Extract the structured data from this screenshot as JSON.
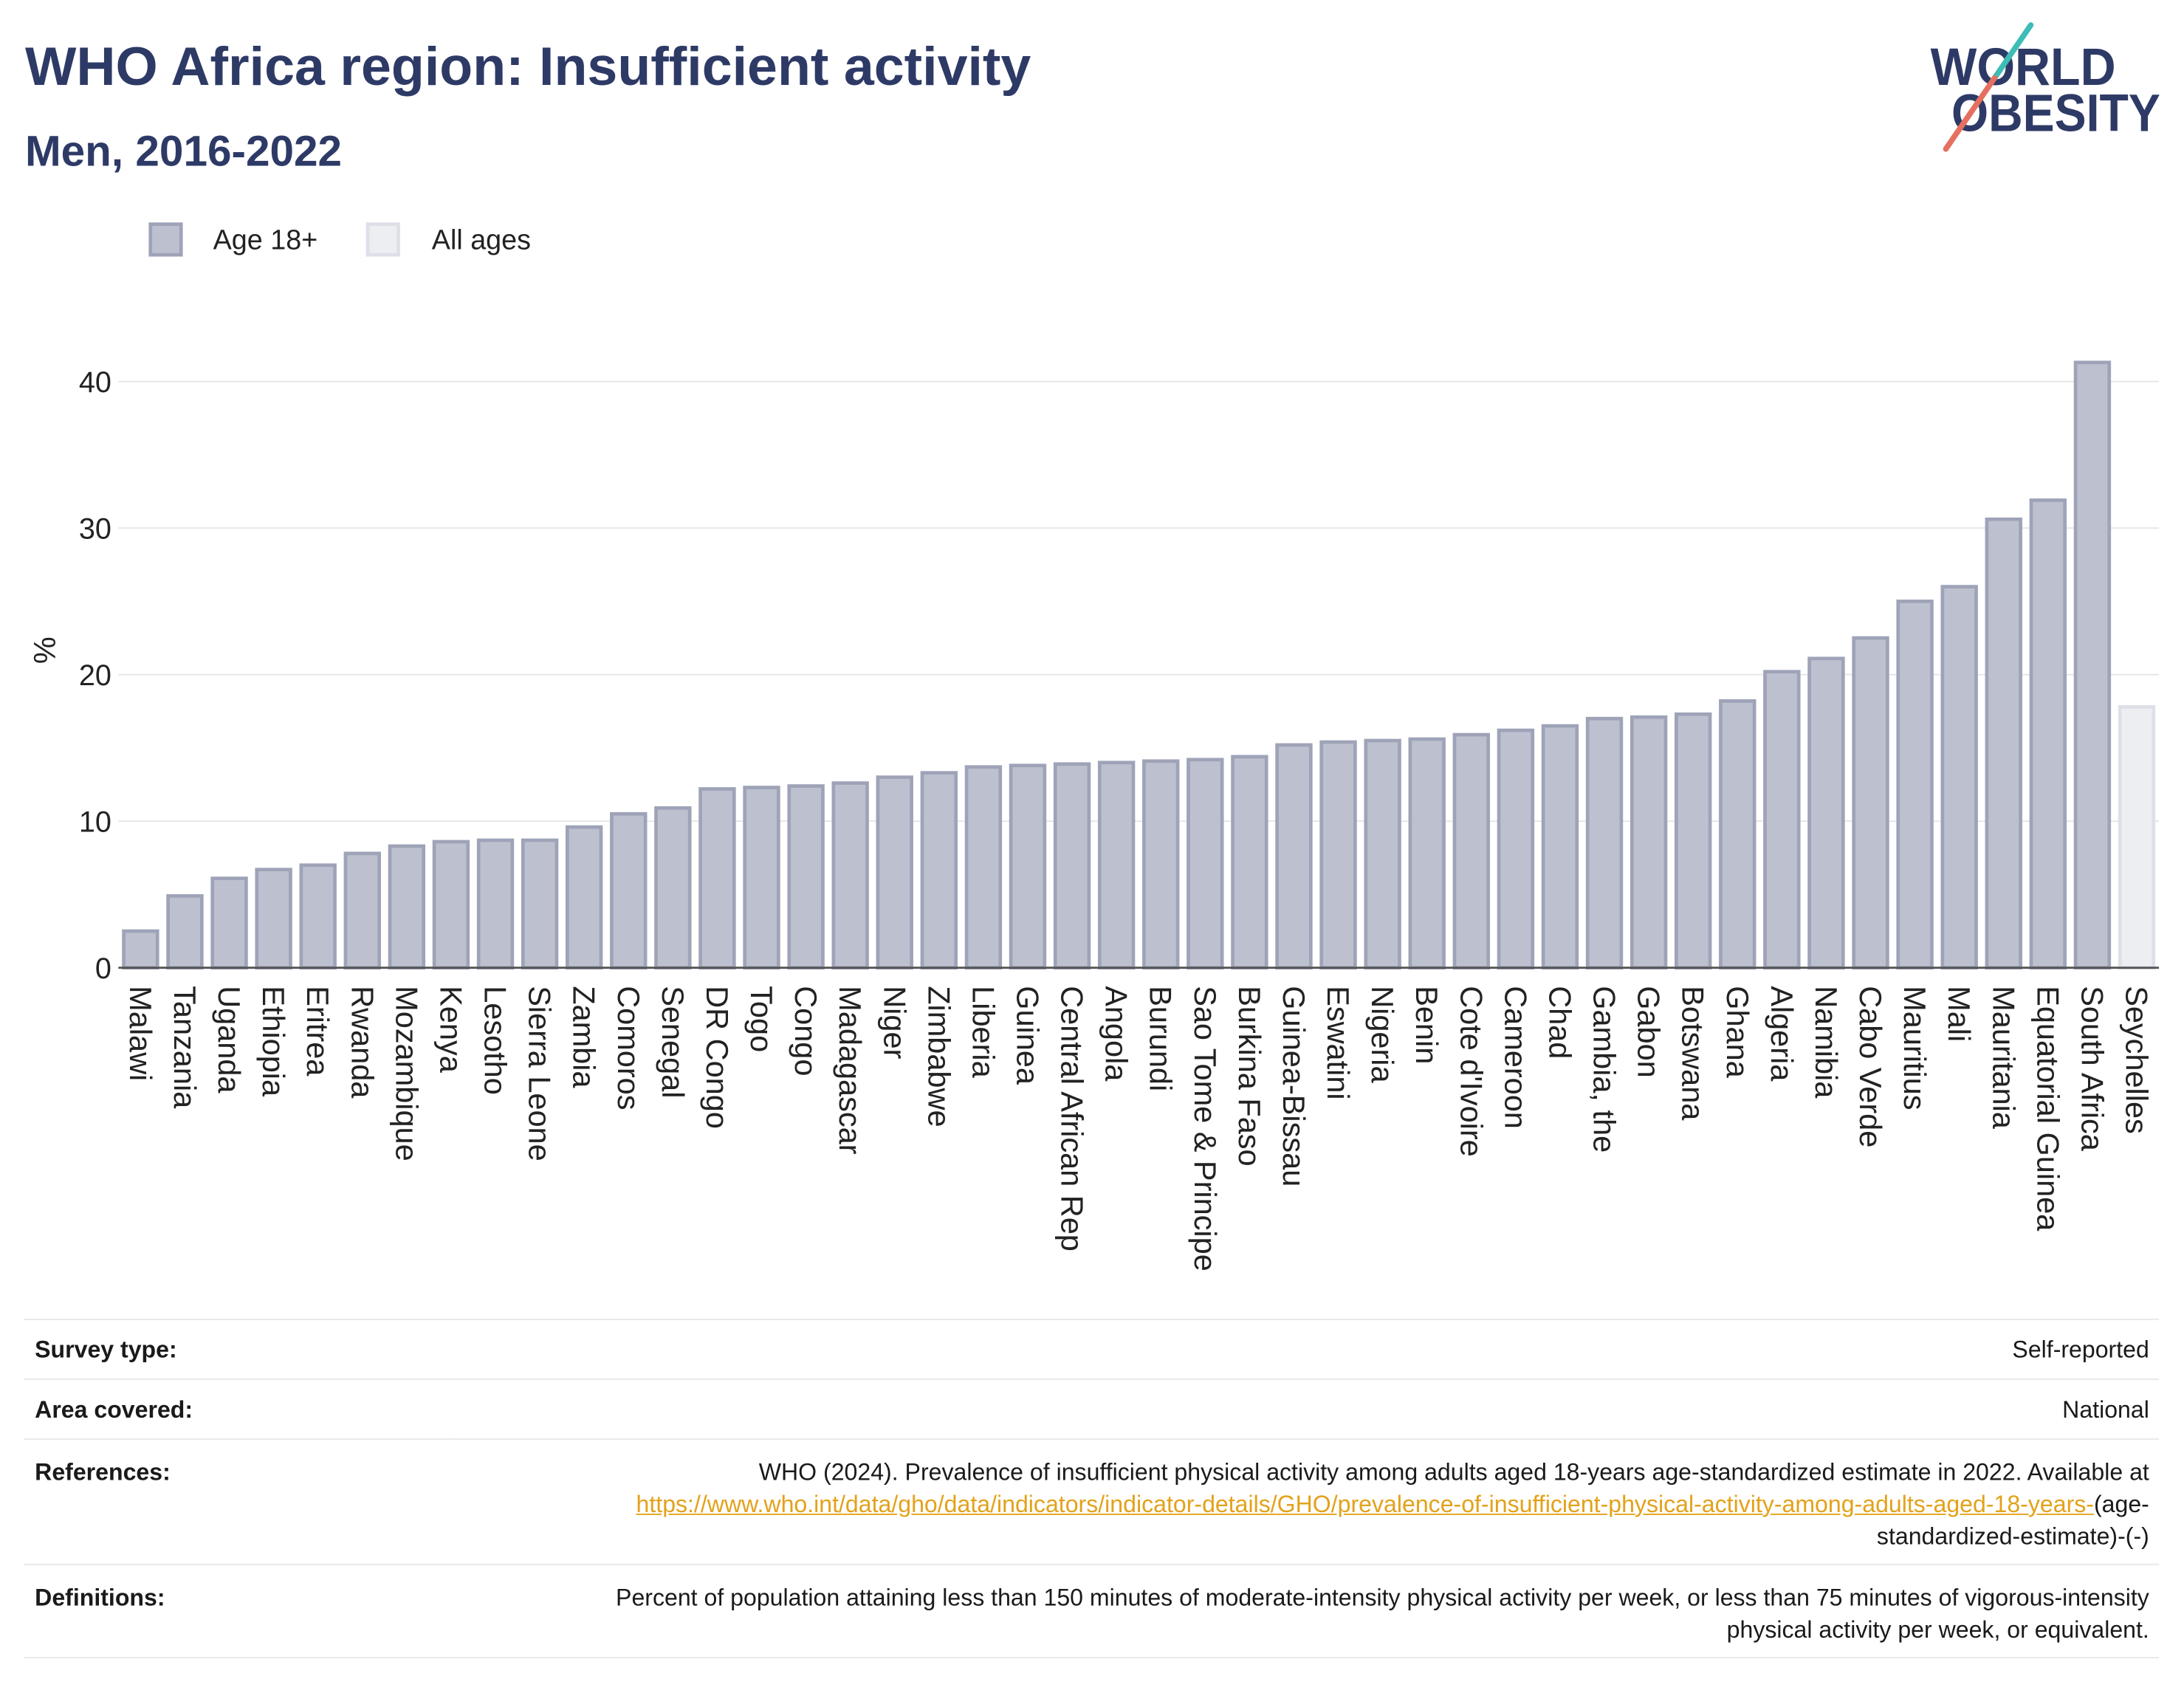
{
  "chart_data": {
    "type": "bar",
    "title": "WHO Africa region: Insufficient activity",
    "subtitle": "Men, 2016-2022",
    "ylabel": "%",
    "ylim": [
      0,
      43
    ],
    "yticks": [
      0,
      10,
      20,
      30,
      40
    ],
    "grid": true,
    "legend_position": "top-left",
    "categories": [
      "Malawi",
      "Tanzania",
      "Uganda",
      "Ethiopia",
      "Eritrea",
      "Rwanda",
      "Mozambique",
      "Kenya",
      "Lesotho",
      "Sierra Leone",
      "Zambia",
      "Comoros",
      "Senegal",
      "DR Congo",
      "Togo",
      "Congo",
      "Madagascar",
      "Niger",
      "Zimbabwe",
      "Liberia",
      "Guinea",
      "Central African Rep",
      "Angola",
      "Burundi",
      "Sao Tome & Principe",
      "Burkina Faso",
      "Guinea-Bissau",
      "Eswatini",
      "Nigeria",
      "Benin",
      "Cote d'Ivoire",
      "Cameroon",
      "Chad",
      "Gambia, the",
      "Gabon",
      "Botswana",
      "Ghana",
      "Algeria",
      "Namibia",
      "Cabo Verde",
      "Mauritius",
      "Mali",
      "Mauritania",
      "Equatorial Guinea",
      "South Africa",
      "Seychelles"
    ],
    "series": [
      {
        "name": "Age 18+",
        "color": "#bdc1cf",
        "border_color": "#9ea3b8",
        "values": [
          2.5,
          4.9,
          6.1,
          6.7,
          7.0,
          7.8,
          8.3,
          8.6,
          8.7,
          8.7,
          9.6,
          10.5,
          10.9,
          12.2,
          12.3,
          12.4,
          12.6,
          13.0,
          13.3,
          13.7,
          13.8,
          13.9,
          14.0,
          14.1,
          14.2,
          14.4,
          15.2,
          15.4,
          15.5,
          15.6,
          15.9,
          16.2,
          16.5,
          17.0,
          17.1,
          17.3,
          18.2,
          20.2,
          21.1,
          22.5,
          25.0,
          26.0,
          30.6,
          31.9,
          41.3,
          null
        ]
      },
      {
        "name": "All ages",
        "color": "#eceef2",
        "border_color": "#dde0e7",
        "values": [
          null,
          null,
          null,
          null,
          null,
          null,
          null,
          null,
          null,
          null,
          null,
          null,
          null,
          null,
          null,
          null,
          null,
          null,
          null,
          null,
          null,
          null,
          null,
          null,
          null,
          null,
          null,
          null,
          null,
          null,
          null,
          null,
          null,
          null,
          null,
          null,
          null,
          null,
          null,
          null,
          null,
          null,
          null,
          null,
          null,
          17.8
        ]
      }
    ]
  },
  "logo": {
    "line1": "WORLD",
    "line2": "OBESITY",
    "text_color": "#2e3a66",
    "slash_top_color": "#3dbdb5",
    "slash_bottom_color": "#e5705f"
  },
  "info": {
    "survey_type": {
      "label": "Survey type:",
      "value": "Self-reported"
    },
    "area_covered": {
      "label": "Area covered:",
      "value": "National"
    },
    "references": {
      "label": "References:",
      "text": "WHO (2024). Prevalence of insufficient physical activity among adults aged 18-years age-standardized estimate in 2022. Available at",
      "link": "https://www.who.int/data/gho/data/indicators/indicator-details/GHO/prevalence-of-insufficient-physical-activity-among-adults-aged-18-years-",
      "link_suffix": "(age-standardized-estimate)-(-)",
      "link_color": "#e3a21a"
    },
    "definitions": {
      "label": "Definitions:",
      "value": "Percent of population attaining less than 150 minutes of moderate-intensity physical activity per week, or less than 75 minutes of vigorous-intensity physical activity per week, or equivalent."
    }
  }
}
